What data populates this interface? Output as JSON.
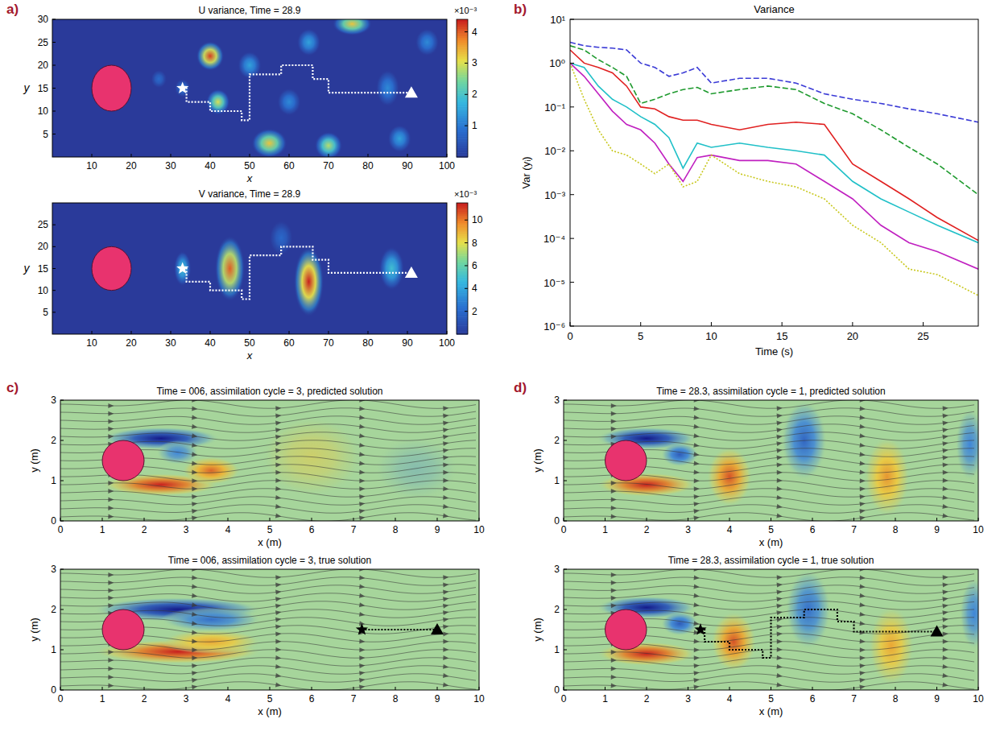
{
  "chart_data": [
    {
      "type": "heatmap",
      "panel": "a)",
      "title": "U variance, Time = 28.9",
      "xlabel": "x",
      "ylabel": "y",
      "xlim": [
        0,
        100
      ],
      "ylim": [
        0,
        30
      ],
      "xticks": [
        10,
        20,
        30,
        40,
        50,
        60,
        70,
        80,
        90,
        100
      ],
      "yticks": [
        5,
        10,
        15,
        20,
        25,
        30
      ],
      "colorbar": {
        "range": [
          0,
          0.0044
        ],
        "ticks": [
          {
            "value": 0.001,
            "label": "1"
          },
          {
            "value": 0.002,
            "label": "2"
          },
          {
            "value": 0.003,
            "label": "3"
          },
          {
            "value": 0.004,
            "label": "4"
          }
        ],
        "multiplier": "×10⁻³"
      },
      "features": [
        {
          "x": 40,
          "y": 22,
          "rx": 3.5,
          "ry": 3.2,
          "value": 0.0042
        },
        {
          "x": 42,
          "y": 12,
          "rx": 3,
          "ry": 2.8,
          "value": 0.003
        },
        {
          "x": 33,
          "y": 15,
          "rx": 2,
          "ry": 2,
          "value": 0.001
        },
        {
          "x": 27,
          "y": 17,
          "rx": 2,
          "ry": 2,
          "value": 0.0008
        },
        {
          "x": 55,
          "y": 3,
          "rx": 4.5,
          "ry": 3.2,
          "value": 0.0033
        },
        {
          "x": 70,
          "y": 2.5,
          "rx": 3.5,
          "ry": 3,
          "value": 0.0028
        },
        {
          "x": 76,
          "y": 29,
          "rx": 5,
          "ry": 2.5,
          "value": 0.0033
        },
        {
          "x": 50,
          "y": 20,
          "rx": 3,
          "ry": 3,
          "value": 0.0015
        },
        {
          "x": 60,
          "y": 12,
          "rx": 3,
          "ry": 3,
          "value": 0.0012
        },
        {
          "x": 65,
          "y": 25,
          "rx": 3,
          "ry": 3,
          "value": 0.0015
        },
        {
          "x": 85,
          "y": 15,
          "rx": 3,
          "ry": 4,
          "value": 0.0012
        },
        {
          "x": 88,
          "y": 4,
          "rx": 3,
          "ry": 3,
          "value": 0.0015
        },
        {
          "x": 95,
          "y": 25,
          "rx": 3,
          "ry": 3,
          "value": 0.0012
        }
      ],
      "obstacle": {
        "x": 15,
        "y": 15,
        "r": 5
      },
      "path": {
        "x": [
          33,
          34,
          34,
          40,
          40,
          48,
          48,
          50,
          50,
          58,
          58,
          66,
          66,
          70,
          70,
          91
        ],
        "y": [
          15,
          15,
          12,
          12,
          10,
          10,
          8,
          8,
          18,
          18,
          20,
          20,
          17,
          17,
          14,
          14
        ],
        "color": "#ffffff",
        "line_style": "dotted"
      }
    },
    {
      "type": "heatmap",
      "title": "V variance, Time = 28.9",
      "xlabel": "x",
      "ylabel": "y",
      "xlim": [
        0,
        100
      ],
      "ylim": [
        0,
        30
      ],
      "xticks": [
        10,
        20,
        30,
        40,
        50,
        60,
        70,
        80,
        90,
        100
      ],
      "yticks": [
        5,
        10,
        15,
        20,
        25
      ],
      "colorbar": {
        "range": [
          0,
          0.0115
        ],
        "ticks": [
          {
            "value": 0.002,
            "label": "2"
          },
          {
            "value": 0.004,
            "label": "4"
          },
          {
            "value": 0.006,
            "label": "6"
          },
          {
            "value": 0.008,
            "label": "8"
          },
          {
            "value": 0.01,
            "label": "10"
          }
        ],
        "multiplier": "×10⁻³"
      },
      "features": [
        {
          "x": 33,
          "y": 15,
          "rx": 2.2,
          "ry": 4,
          "value": 0.005
        },
        {
          "x": 45,
          "y": 15,
          "rx": 3.8,
          "ry": 7.5,
          "value": 0.0105
        },
        {
          "x": 65,
          "y": 12,
          "rx": 3.8,
          "ry": 8,
          "value": 0.0115
        },
        {
          "x": 86,
          "y": 15,
          "rx": 3.2,
          "ry": 5,
          "value": 0.005
        },
        {
          "x": 58,
          "y": 22,
          "rx": 3,
          "ry": 4,
          "value": 0.002
        }
      ],
      "obstacle": {
        "x": 15,
        "y": 15,
        "r": 5
      },
      "path": {
        "x": [
          33,
          34,
          34,
          40,
          40,
          48,
          48,
          50,
          50,
          58,
          58,
          66,
          66,
          70,
          70,
          91
        ],
        "y": [
          15,
          15,
          12,
          12,
          10,
          10,
          8,
          8,
          18,
          18,
          20,
          20,
          17,
          17,
          14,
          14
        ],
        "color": "#ffffff",
        "line_style": "dotted"
      }
    },
    {
      "type": "line",
      "panel": "b)",
      "title": "Variance",
      "xlabel": "Time (s)",
      "ylabel": "Var (yᵢ)",
      "log": "y",
      "xlim": [
        0,
        28.9
      ],
      "ylim": [
        1e-06,
        10
      ],
      "xticks": [
        0,
        5,
        10,
        15,
        20,
        25
      ],
      "yticks": [
        {
          "value": 1e-06,
          "label": "10⁻⁶"
        },
        {
          "value": 1e-05,
          "label": "10⁻⁵"
        },
        {
          "value": 0.0001,
          "label": "10⁻⁴"
        },
        {
          "value": 0.001,
          "label": "10⁻³"
        },
        {
          "value": 0.01,
          "label": "10⁻²"
        },
        {
          "value": 0.1,
          "label": "10⁻¹"
        },
        {
          "value": 1,
          "label": "10⁰"
        },
        {
          "value": 10,
          "label": "10¹"
        }
      ],
      "x": [
        0,
        1,
        2,
        3,
        4,
        5,
        6,
        7,
        8,
        9,
        10,
        12,
        14,
        16,
        18,
        20,
        22,
        24,
        26,
        28.9
      ],
      "series": [
        {
          "color": "#3b3bd6",
          "line_style": "dashed",
          "values": [
            3,
            2.5,
            2.3,
            2.2,
            2,
            1,
            0.8,
            0.5,
            0.6,
            0.8,
            0.35,
            0.45,
            0.45,
            0.35,
            0.2,
            0.15,
            0.12,
            0.09,
            0.07,
            0.045
          ]
        },
        {
          "color": "#1e9a2e",
          "line_style": "dashed",
          "values": [
            2.5,
            2,
            1.2,
            0.8,
            0.5,
            0.12,
            0.15,
            0.2,
            0.25,
            0.28,
            0.2,
            0.25,
            0.3,
            0.25,
            0.12,
            0.07,
            0.03,
            0.012,
            0.005,
            0.001
          ]
        },
        {
          "color": "#e02020",
          "line_style": "solid",
          "values": [
            2,
            1,
            0.8,
            0.6,
            0.3,
            0.1,
            0.09,
            0.06,
            0.05,
            0.05,
            0.04,
            0.03,
            0.04,
            0.045,
            0.04,
            0.005,
            0.002,
            0.0008,
            0.0003,
            9e-05
          ]
        },
        {
          "color": "#20c0c8",
          "line_style": "solid",
          "values": [
            1,
            0.8,
            0.3,
            0.15,
            0.1,
            0.06,
            0.04,
            0.02,
            0.004,
            0.015,
            0.012,
            0.015,
            0.012,
            0.01,
            0.008,
            0.002,
            0.0008,
            0.0004,
            0.0002,
            8e-05
          ]
        },
        {
          "color": "#c020c0",
          "line_style": "solid",
          "values": [
            1,
            0.5,
            0.2,
            0.08,
            0.04,
            0.03,
            0.015,
            0.005,
            0.002,
            0.007,
            0.008,
            0.006,
            0.006,
            0.005,
            0.002,
            0.0008,
            0.0002,
            8e-05,
            5e-05,
            2e-05
          ]
        },
        {
          "color": "#c8c81e",
          "line_style": "dotted",
          "values": [
            1,
            0.15,
            0.03,
            0.01,
            0.008,
            0.005,
            0.003,
            0.005,
            0.0015,
            0.002,
            0.008,
            0.003,
            0.002,
            0.0015,
            0.0008,
            0.0002,
            8e-05,
            2e-05,
            1.5e-05,
            5e-06
          ]
        }
      ]
    },
    {
      "type": "flow",
      "panel": "c)",
      "title": "Time = 006, assimilation cycle = 3, predicted solution",
      "xlabel": "x (m)",
      "ylabel": "y (m)",
      "xlim": [
        0,
        10
      ],
      "ylim": [
        0,
        3
      ],
      "xticks": [
        0,
        1,
        2,
        3,
        4,
        5,
        6,
        7,
        8,
        9,
        10
      ],
      "yticks": [
        0,
        1,
        2,
        3
      ],
      "features": [
        {
          "x": 2.4,
          "y": 2.05,
          "rx": 1.4,
          "ry": 0.28,
          "value": -1
        },
        {
          "x": 2.4,
          "y": 0.9,
          "rx": 1.4,
          "ry": 0.28,
          "value": 1
        },
        {
          "x": 3.6,
          "y": 1.25,
          "rx": 0.7,
          "ry": 0.35,
          "value": 0.8
        },
        {
          "x": 2.8,
          "y": 1.7,
          "rx": 0.5,
          "ry": 0.3,
          "value": -0.5
        },
        {
          "x": 6,
          "y": 1.6,
          "rx": 1.2,
          "ry": 1,
          "value": 0.25
        },
        {
          "x": 8.5,
          "y": 1.3,
          "rx": 1,
          "ry": 0.8,
          "value": -0.15
        }
      ],
      "obstacle": {
        "x": 1.5,
        "y": 1.5,
        "r": 0.5
      }
    },
    {
      "type": "flow",
      "title": "Time = 006, assimilation cycle = 3, true solution",
      "xlabel": "x (m)",
      "ylabel": "y (m)",
      "xlim": [
        0,
        10
      ],
      "ylim": [
        0,
        3
      ],
      "xticks": [
        0,
        1,
        2,
        3,
        4,
        5,
        6,
        7,
        8,
        9,
        10
      ],
      "yticks": [
        0,
        1,
        2,
        3
      ],
      "features": [
        {
          "x": 2.8,
          "y": 2.0,
          "rx": 2,
          "ry": 0.3,
          "value": -1
        },
        {
          "x": 2.8,
          "y": 0.95,
          "rx": 2,
          "ry": 0.3,
          "value": 1
        },
        {
          "x": 3.6,
          "y": 1.75,
          "rx": 1.2,
          "ry": 0.3,
          "value": -0.6
        },
        {
          "x": 3.6,
          "y": 1.2,
          "rx": 1.2,
          "ry": 0.3,
          "value": 0.6
        }
      ],
      "obstacle": {
        "x": 1.5,
        "y": 1.5,
        "r": 0.5
      },
      "path": {
        "x": [
          7.2,
          9
        ],
        "y": [
          1.5,
          1.5
        ],
        "color": "#000000",
        "line_style": "dotted"
      }
    },
    {
      "type": "flow",
      "panel": "d)",
      "title": "Time = 28.3, assimilation cycle = 1, predicted solution",
      "xlabel": "x (m)",
      "ylabel": "y (m)",
      "xlim": [
        0,
        10
      ],
      "ylim": [
        0,
        3
      ],
      "xticks": [
        0,
        1,
        2,
        3,
        4,
        5,
        6,
        7,
        8,
        9,
        10
      ],
      "yticks": [
        0,
        1,
        2,
        3
      ],
      "features": [
        {
          "x": 2,
          "y": 2.05,
          "rx": 1.2,
          "ry": 0.28,
          "value": -1
        },
        {
          "x": 2,
          "y": 0.9,
          "rx": 1.2,
          "ry": 0.3,
          "value": 1
        },
        {
          "x": 2.8,
          "y": 1.65,
          "rx": 0.45,
          "ry": 0.3,
          "value": -0.7
        },
        {
          "x": 4,
          "y": 1.1,
          "rx": 0.55,
          "ry": 0.75,
          "value": 0.85
        },
        {
          "x": 5.8,
          "y": 2,
          "rx": 0.55,
          "ry": 1,
          "value": -0.65
        },
        {
          "x": 7.8,
          "y": 1.1,
          "rx": 0.55,
          "ry": 1,
          "value": 0.65
        },
        {
          "x": 9.8,
          "y": 1.9,
          "rx": 0.35,
          "ry": 0.9,
          "value": -0.5
        }
      ],
      "obstacle": {
        "x": 1.5,
        "y": 1.5,
        "r": 0.5
      }
    },
    {
      "type": "flow",
      "title": "Time = 28.3, assimilation cycle = 1, true solution",
      "xlabel": "x (m)",
      "ylabel": "y (m)",
      "xlim": [
        0,
        10
      ],
      "ylim": [
        0,
        3
      ],
      "xticks": [
        0,
        1,
        2,
        3,
        4,
        5,
        6,
        7,
        8,
        9,
        10
      ],
      "yticks": [
        0,
        1,
        2,
        3
      ],
      "features": [
        {
          "x": 2,
          "y": 2.05,
          "rx": 1.2,
          "ry": 0.28,
          "value": -1
        },
        {
          "x": 2,
          "y": 0.9,
          "rx": 1.2,
          "ry": 0.3,
          "value": 1
        },
        {
          "x": 2.8,
          "y": 1.65,
          "rx": 0.45,
          "ry": 0.3,
          "value": -0.7
        },
        {
          "x": 4.1,
          "y": 1.2,
          "rx": 0.55,
          "ry": 0.75,
          "value": 0.85
        },
        {
          "x": 5.9,
          "y": 2,
          "rx": 0.55,
          "ry": 1,
          "value": -0.6
        },
        {
          "x": 7.9,
          "y": 1.1,
          "rx": 0.55,
          "ry": 1,
          "value": 0.6
        },
        {
          "x": 9.9,
          "y": 1.9,
          "rx": 0.35,
          "ry": 0.9,
          "value": -0.5
        }
      ],
      "obstacle": {
        "x": 1.5,
        "y": 1.5,
        "r": 0.5
      },
      "path": {
        "x": [
          3.3,
          3.4,
          3.4,
          4,
          4,
          4.8,
          4.8,
          5,
          5,
          5.8,
          5.8,
          6.6,
          6.6,
          7,
          7,
          9
        ],
        "y": [
          1.5,
          1.5,
          1.2,
          1.2,
          1,
          1,
          0.8,
          0.8,
          1.8,
          1.8,
          2,
          2,
          1.7,
          1.7,
          1.45,
          1.45
        ],
        "color": "#000000",
        "line_style": "dotted"
      }
    }
  ]
}
